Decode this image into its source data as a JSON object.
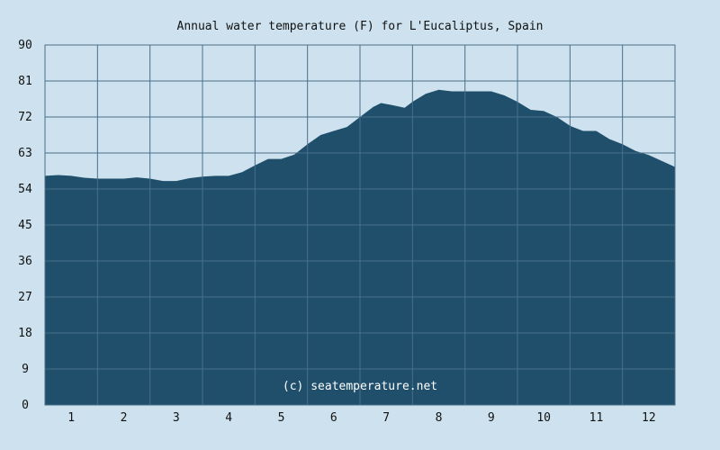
{
  "chart_data": {
    "type": "area",
    "title": "Annual water temperature (F) for L'Eucaliptus, Spain",
    "xlabel": "",
    "ylabel": "",
    "watermark": "(c) seatemperature.net",
    "x_ticks": [
      "1",
      "2",
      "3",
      "4",
      "5",
      "6",
      "7",
      "8",
      "9",
      "10",
      "11",
      "12"
    ],
    "y_ticks": [
      "0",
      "9",
      "18",
      "27",
      "36",
      "45",
      "54",
      "63",
      "72",
      "81",
      "90"
    ],
    "ylim": [
      0,
      90
    ],
    "xlim": [
      0.5,
      12.5
    ],
    "grid": true,
    "colors": {
      "background": "#cde2ee",
      "fill": "#1f4f6b",
      "grid": "#4a6f8a"
    },
    "series": [
      {
        "x": [
          0.5,
          0.75,
          1.0,
          1.25,
          1.5,
          1.75,
          2.0,
          2.25,
          2.5,
          2.75,
          3.0,
          3.25,
          3.5,
          3.75,
          4.0,
          4.25,
          4.5,
          4.75,
          5.0,
          5.25,
          5.5,
          5.75,
          6.0,
          6.25,
          6.45,
          6.75,
          6.9,
          7.1,
          7.35,
          7.5,
          7.75,
          8.0,
          8.25,
          8.5,
          8.75,
          9.0,
          9.25,
          9.5,
          9.75,
          10.0,
          10.25,
          10.5,
          10.75,
          11.0,
          11.25,
          11.5,
          11.75,
          12.0,
          12.25,
          12.5
        ],
        "values": [
          57.3,
          57.5,
          57.3,
          56.8,
          56.6,
          56.6,
          56.6,
          56.9,
          56.6,
          56.0,
          56.0,
          56.7,
          57.1,
          57.3,
          57.3,
          58.2,
          59.9,
          61.5,
          61.5,
          62.6,
          65.2,
          67.5,
          68.5,
          69.5,
          71.5,
          74.5,
          75.5,
          75.0,
          74.3,
          75.8,
          77.8,
          78.8,
          78.4,
          78.4,
          78.4,
          78.4,
          77.4,
          75.8,
          73.8,
          73.5,
          72.0,
          69.8,
          68.5,
          68.5,
          66.5,
          65.2,
          63.5,
          62.5,
          61.0,
          59.5
        ]
      }
    ]
  }
}
